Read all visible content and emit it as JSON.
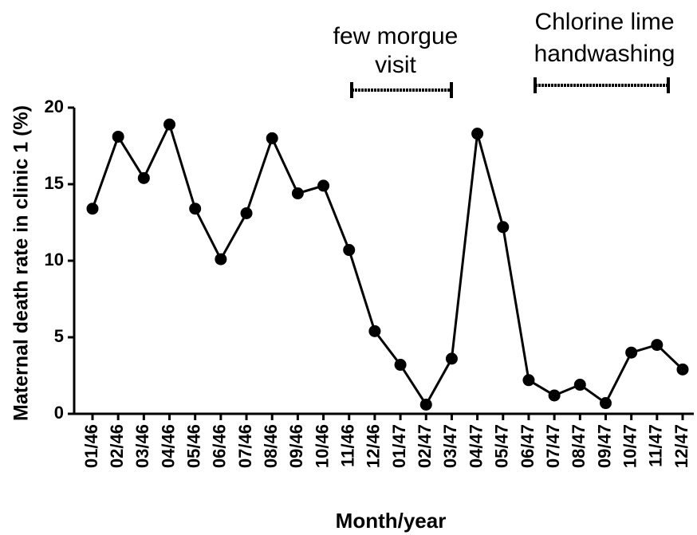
{
  "chart_data": {
    "type": "line",
    "x_label": "Month/year",
    "y_label": "Maternal death rate in clinic 1 (%)",
    "annotations": [
      [
        "few morgue",
        "visit"
      ],
      [
        "Chlorine lime",
        "handwashing"
      ]
    ],
    "categories": [
      "01/46",
      "02/46",
      "03/46",
      "04/46",
      "05/46",
      "06/46",
      "07/46",
      "08/46",
      "09/46",
      "10/46",
      "11/46",
      "12/46",
      "01/47",
      "02/47",
      "03/47",
      "04/47",
      "05/47",
      "06/47",
      "07/47",
      "08/47",
      "09/47",
      "10/47",
      "11/47",
      "12/47"
    ],
    "series": [
      {
        "color": "#000000",
        "values": [
          13.4,
          18.1,
          15.4,
          18.9,
          13.4,
          10.1,
          13.1,
          18.0,
          14.4,
          14.9,
          10.7,
          5.4,
          3.2,
          0.6,
          3.6,
          18.3,
          12.2,
          2.2,
          1.2,
          1.9,
          0.7,
          4.0,
          4.5,
          2.9
        ]
      }
    ],
    "ylim": [
      0,
      20
    ],
    "yticks": [
      0,
      5,
      10,
      15,
      20
    ],
    "grid": false
  }
}
